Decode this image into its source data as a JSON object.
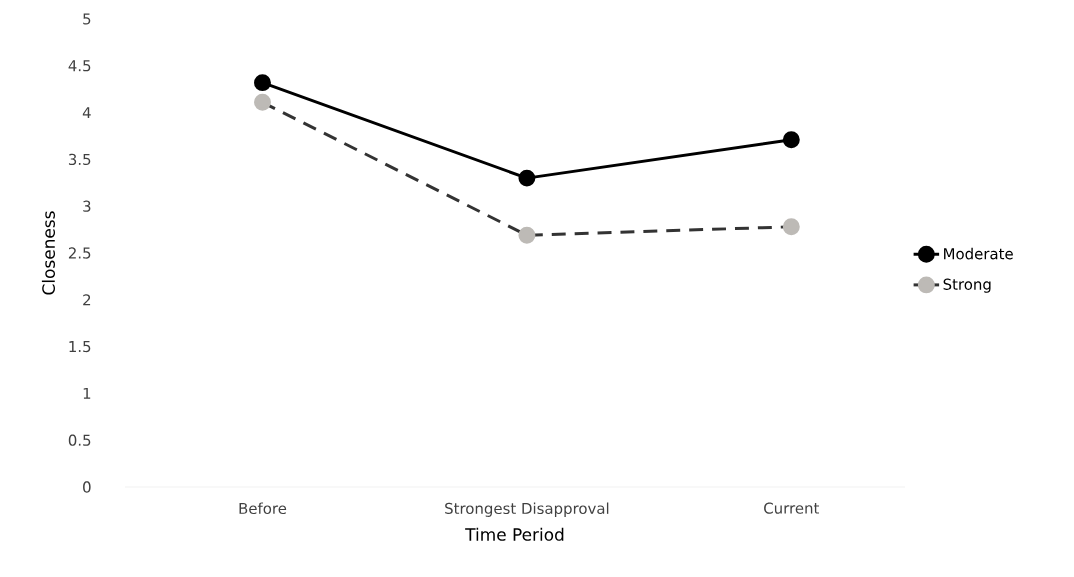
{
  "chart_data": {
    "type": "line",
    "xlabel": "Time Period",
    "ylabel": "Closeness",
    "categories": [
      "Before",
      "Strongest Disapproval",
      "Current"
    ],
    "series": [
      {
        "name": "Moderate",
        "color": "#000000",
        "line_style": "solid",
        "values": [
          4.32,
          3.3,
          3.71
        ]
      },
      {
        "name": "Strong",
        "color": "#bdbab6",
        "line_style": "dashed",
        "values": [
          4.11,
          2.69,
          2.78
        ]
      }
    ],
    "ylim": [
      0,
      5
    ],
    "yticks": [
      0,
      0.5,
      1,
      1.5,
      2,
      2.5,
      3,
      3.5,
      4,
      4.5,
      5
    ],
    "marker": "circle",
    "legend": "right",
    "grid": false
  }
}
